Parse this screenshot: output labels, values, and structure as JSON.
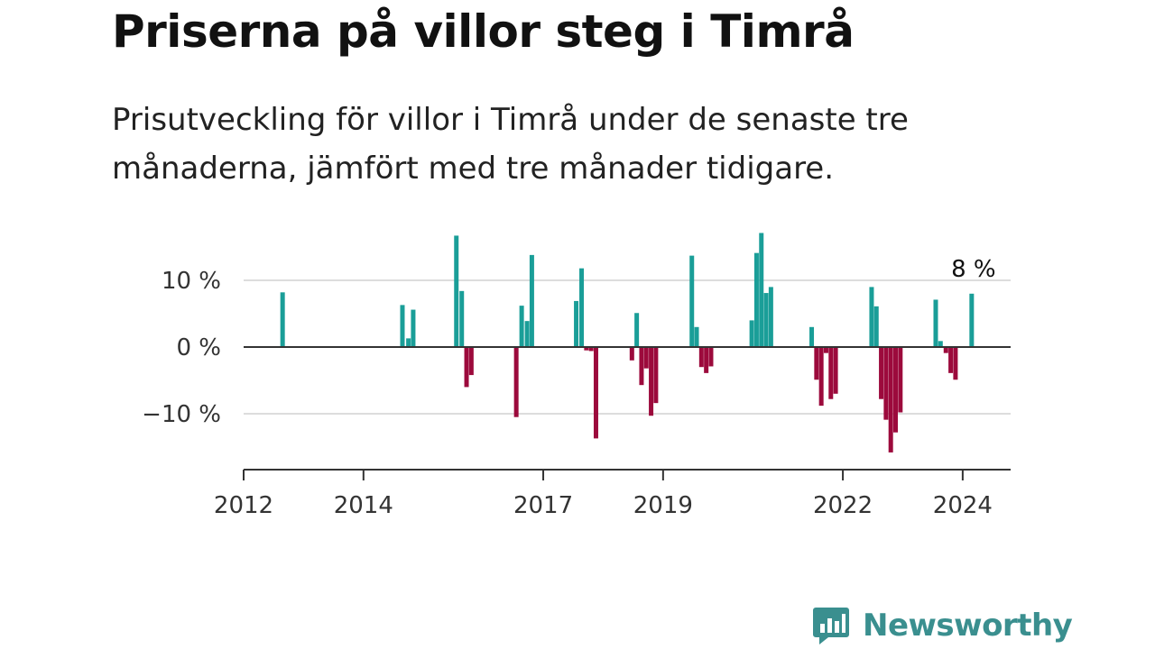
{
  "title": "Priserna på villor steg i Timrå",
  "subtitle": "Prisutveckling för villor i Timrå under de senaste tre månaderna, jämfört med tre månader tidigare.",
  "colors": {
    "positive": "#1a9e98",
    "negative": "#9c0a3c",
    "grid": "#dddddd",
    "axis": "#333333"
  },
  "logo": {
    "text": "Newsworthy",
    "icon": "bar-chart-speech-icon"
  },
  "chart_data": {
    "type": "bar",
    "ylim": [
      -18,
      18
    ],
    "xlim": [
      2012,
      2024.8
    ],
    "y_ticks": [
      {
        "value": 10,
        "label": "10 %"
      },
      {
        "value": 0,
        "label": "0 %"
      },
      {
        "value": -10,
        "label": "−10 %"
      }
    ],
    "x_ticks": [
      {
        "value": 2012,
        "label": "2012"
      },
      {
        "value": 2014,
        "label": "2014"
      },
      {
        "value": 2017,
        "label": "2017"
      },
      {
        "value": 2019,
        "label": "2019"
      },
      {
        "value": 2022,
        "label": "2022"
      },
      {
        "value": 2024,
        "label": "2024"
      }
    ],
    "annotation": {
      "x": 2024.15,
      "text": "8 %"
    },
    "bars": [
      {
        "x": 2012.65,
        "value": 8.2
      },
      {
        "x": 2014.65,
        "value": 6.3
      },
      {
        "x": 2014.75,
        "value": 1.3
      },
      {
        "x": 2014.83,
        "value": 5.6
      },
      {
        "x": 2015.55,
        "value": 16.7
      },
      {
        "x": 2015.64,
        "value": 8.4
      },
      {
        "x": 2015.72,
        "value": -6.0
      },
      {
        "x": 2015.8,
        "value": -4.2
      },
      {
        "x": 2016.55,
        "value": -10.5
      },
      {
        "x": 2016.64,
        "value": 6.2
      },
      {
        "x": 2016.73,
        "value": 3.9
      },
      {
        "x": 2016.81,
        "value": 13.8
      },
      {
        "x": 2017.55,
        "value": 6.9
      },
      {
        "x": 2017.64,
        "value": 11.8
      },
      {
        "x": 2017.72,
        "value": -0.5
      },
      {
        "x": 2017.8,
        "value": -0.6
      },
      {
        "x": 2017.88,
        "value": -13.7
      },
      {
        "x": 2018.48,
        "value": -2.0
      },
      {
        "x": 2018.56,
        "value": 5.1
      },
      {
        "x": 2018.64,
        "value": -5.7
      },
      {
        "x": 2018.72,
        "value": -3.2
      },
      {
        "x": 2018.8,
        "value": -10.3
      },
      {
        "x": 2018.88,
        "value": -8.4
      },
      {
        "x": 2019.48,
        "value": 13.7
      },
      {
        "x": 2019.56,
        "value": 3.0
      },
      {
        "x": 2019.64,
        "value": -3.0
      },
      {
        "x": 2019.72,
        "value": -3.9
      },
      {
        "x": 2019.8,
        "value": -2.9
      },
      {
        "x": 2020.48,
        "value": 4.0
      },
      {
        "x": 2020.56,
        "value": 14.1
      },
      {
        "x": 2020.64,
        "value": 17.1
      },
      {
        "x": 2020.72,
        "value": 8.1
      },
      {
        "x": 2020.8,
        "value": 9.0
      },
      {
        "x": 2021.48,
        "value": 3.0
      },
      {
        "x": 2021.56,
        "value": -4.9
      },
      {
        "x": 2021.64,
        "value": -8.8
      },
      {
        "x": 2021.72,
        "value": -0.9
      },
      {
        "x": 2021.8,
        "value": -7.8
      },
      {
        "x": 2021.88,
        "value": -7.0
      },
      {
        "x": 2022.48,
        "value": 9.0
      },
      {
        "x": 2022.56,
        "value": 6.1
      },
      {
        "x": 2022.64,
        "value": -7.8
      },
      {
        "x": 2022.72,
        "value": -10.9
      },
      {
        "x": 2022.8,
        "value": -15.8
      },
      {
        "x": 2022.88,
        "value": -12.8
      },
      {
        "x": 2022.96,
        "value": -9.8
      },
      {
        "x": 2023.55,
        "value": 7.1
      },
      {
        "x": 2023.63,
        "value": 0.9
      },
      {
        "x": 2023.72,
        "value": -0.9
      },
      {
        "x": 2023.8,
        "value": -3.9
      },
      {
        "x": 2023.88,
        "value": -4.9
      },
      {
        "x": 2024.15,
        "value": 8.0
      }
    ]
  }
}
